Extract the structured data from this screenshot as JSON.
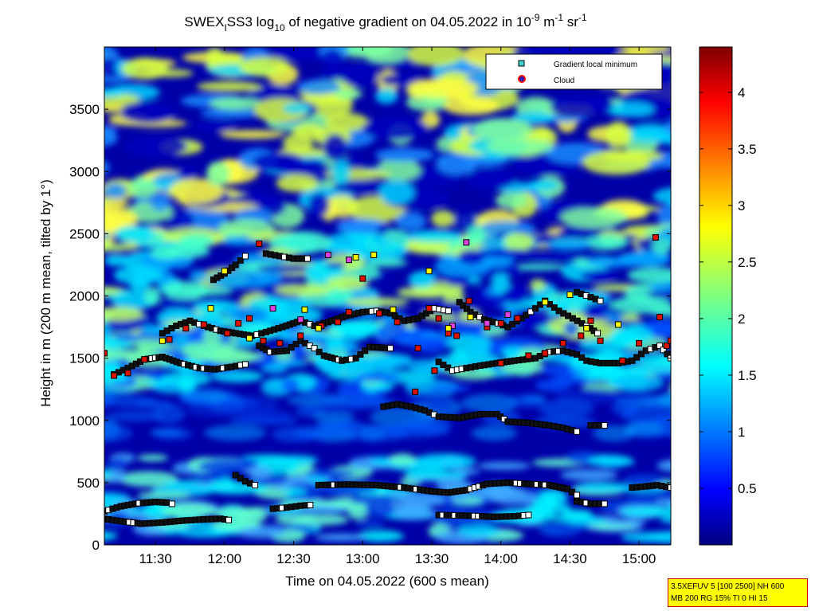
{
  "chart_data": {
    "type": "heatmap",
    "title": {
      "prefix": "SWEX",
      "prefix_sub": "I",
      "main": "SS3 log",
      "log_base": "10",
      "rest": " of negative gradient on 04.05.2022 in 10",
      "exp1": "-9",
      "unit_mid": " m",
      "exp2": "-1",
      "unit_end": " sr",
      "exp3": "-1"
    },
    "xlabel": "Time on 04.05.2022 (600 s mean)",
    "ylabel": "Height in m (200 m mean, tilted by 1°)",
    "x_ticks": [
      "11:30",
      "12:00",
      "12:30",
      "13:00",
      "13:30",
      "14:00",
      "14:30",
      "15:00"
    ],
    "x_range_hours": [
      11.13,
      15.23
    ],
    "y_ticks": [
      0,
      500,
      1000,
      1500,
      2000,
      2500,
      3000,
      3500
    ],
    "y_range": [
      0,
      4000
    ],
    "colorbar": {
      "ticks": [
        "0.5",
        "1",
        "1.5",
        "2",
        "2.5",
        "3",
        "3.5",
        "4"
      ],
      "range": [
        0,
        4.4
      ],
      "colormap": "jet"
    },
    "legend": {
      "placement": "top-right",
      "entries": [
        {
          "label": "Gradient local minimum",
          "marker": "square",
          "color": "#3fd0d0"
        },
        {
          "label": "Cloud",
          "marker": "circle",
          "color": "#2020c0",
          "edge": "#ff0000"
        }
      ]
    },
    "gradient_minimum_tracks": [
      {
        "points": [
          [
            11.13,
            270
          ],
          [
            11.25,
            310
          ],
          [
            11.38,
            335
          ],
          [
            11.5,
            345
          ],
          [
            11.58,
            340
          ],
          [
            11.62,
            330
          ]
        ]
      },
      {
        "points": [
          [
            11.13,
            210
          ],
          [
            11.25,
            190
          ],
          [
            11.4,
            170
          ],
          [
            11.55,
            180
          ],
          [
            11.7,
            195
          ],
          [
            11.85,
            205
          ],
          [
            11.97,
            210
          ],
          [
            12.03,
            200
          ]
        ]
      },
      {
        "points": [
          [
            12.08,
            560
          ],
          [
            12.15,
            510
          ],
          [
            12.22,
            480
          ]
        ]
      },
      {
        "points": [
          [
            12.35,
            290
          ],
          [
            12.45,
            300
          ],
          [
            12.55,
            315
          ],
          [
            12.62,
            320
          ]
        ]
      },
      {
        "points": [
          [
            12.68,
            480
          ],
          [
            12.9,
            485
          ],
          [
            13.1,
            480
          ],
          [
            13.3,
            460
          ],
          [
            13.5,
            430
          ],
          [
            13.62,
            420
          ],
          [
            13.75,
            440
          ],
          [
            13.9,
            490
          ],
          [
            14.05,
            500
          ],
          [
            14.2,
            490
          ],
          [
            14.35,
            480
          ],
          [
            14.48,
            450
          ],
          [
            14.55,
            400
          ]
        ]
      },
      {
        "points": [
          [
            13.55,
            240
          ],
          [
            13.75,
            235
          ],
          [
            13.95,
            225
          ],
          [
            14.1,
            230
          ],
          [
            14.2,
            240
          ]
        ]
      },
      {
        "points": [
          [
            14.55,
            350
          ],
          [
            14.65,
            330
          ],
          [
            14.75,
            330
          ]
        ]
      },
      {
        "points": [
          [
            14.95,
            460
          ],
          [
            15.05,
            470
          ],
          [
            15.13,
            480
          ],
          [
            15.23,
            460
          ]
        ]
      },
      {
        "points": [
          [
            13.15,
            1110
          ],
          [
            13.25,
            1130
          ],
          [
            13.35,
            1110
          ],
          [
            13.45,
            1080
          ],
          [
            13.55,
            1030
          ],
          [
            13.7,
            1020
          ],
          [
            13.85,
            1050
          ],
          [
            13.97,
            1050
          ],
          [
            14.05,
            990
          ],
          [
            14.2,
            980
          ],
          [
            14.35,
            960
          ],
          [
            14.45,
            940
          ],
          [
            14.55,
            910
          ]
        ]
      },
      {
        "points": [
          [
            14.65,
            960
          ],
          [
            14.75,
            960
          ]
        ]
      },
      {
        "points": [
          [
            11.2,
            1370
          ],
          [
            11.3,
            1420
          ],
          [
            11.42,
            1490
          ],
          [
            11.55,
            1510
          ],
          [
            11.68,
            1460
          ],
          [
            11.82,
            1420
          ],
          [
            11.93,
            1410
          ],
          [
            12.05,
            1430
          ],
          [
            12.15,
            1450
          ]
        ]
      },
      {
        "points": [
          [
            12.25,
            1600
          ],
          [
            12.33,
            1550
          ],
          [
            12.45,
            1560
          ],
          [
            12.55,
            1640
          ],
          [
            12.65,
            1580
          ],
          [
            12.72,
            1520
          ],
          [
            12.85,
            1480
          ],
          [
            12.95,
            1500
          ],
          [
            13.05,
            1590
          ],
          [
            13.2,
            1580
          ]
        ]
      },
      {
        "points": [
          [
            13.55,
            1470
          ],
          [
            13.65,
            1400
          ],
          [
            13.75,
            1420
          ],
          [
            13.85,
            1440
          ],
          [
            13.97,
            1460
          ],
          [
            14.1,
            1480
          ],
          [
            14.25,
            1500
          ],
          [
            14.35,
            1550
          ],
          [
            14.45,
            1560
          ],
          [
            14.55,
            1530
          ],
          [
            14.62,
            1480
          ],
          [
            14.72,
            1460
          ],
          [
            14.85,
            1460
          ],
          [
            14.95,
            1480
          ],
          [
            15.05,
            1560
          ],
          [
            15.15,
            1600
          ],
          [
            15.23,
            1500
          ]
        ]
      },
      {
        "points": [
          [
            11.55,
            1700
          ],
          [
            11.65,
            1760
          ],
          [
            11.75,
            1800
          ],
          [
            11.85,
            1760
          ],
          [
            11.97,
            1720
          ],
          [
            12.08,
            1700
          ],
          [
            12.2,
            1680
          ],
          [
            12.3,
            1710
          ],
          [
            12.42,
            1750
          ],
          [
            12.55,
            1800
          ],
          [
            12.65,
            1760
          ],
          [
            12.75,
            1790
          ],
          [
            12.88,
            1840
          ],
          [
            13.0,
            1870
          ],
          [
            13.1,
            1880
          ],
          [
            13.2,
            1860
          ],
          [
            13.3,
            1800
          ],
          [
            13.4,
            1820
          ],
          [
            13.52,
            1900
          ],
          [
            13.62,
            1880
          ]
        ]
      },
      {
        "points": [
          [
            13.7,
            1950
          ],
          [
            13.78,
            1870
          ],
          [
            13.88,
            1810
          ],
          [
            13.98,
            1780
          ],
          [
            14.05,
            1750
          ],
          [
            14.15,
            1820
          ],
          [
            14.25,
            1900
          ],
          [
            14.32,
            1960
          ],
          [
            14.42,
            1880
          ],
          [
            14.52,
            1820
          ],
          [
            14.62,
            1760
          ],
          [
            14.7,
            1700
          ]
        ]
      },
      {
        "points": [
          [
            12.3,
            2340
          ],
          [
            12.4,
            2320
          ],
          [
            12.5,
            2300
          ],
          [
            12.6,
            2300
          ]
        ]
      },
      {
        "points": [
          [
            11.92,
            2130
          ],
          [
            12.0,
            2180
          ],
          [
            12.08,
            2250
          ],
          [
            12.15,
            2320
          ]
        ]
      },
      {
        "points": [
          [
            14.55,
            2030
          ],
          [
            14.65,
            1990
          ],
          [
            14.72,
            1960
          ]
        ]
      }
    ],
    "cloud_points": [
      [
        11.13,
        1540
      ],
      [
        11.2,
        1360
      ],
      [
        11.3,
        1380
      ],
      [
        11.42,
        1490
      ],
      [
        11.6,
        1650
      ],
      [
        11.72,
        1740
      ],
      [
        11.85,
        1770
      ],
      [
        12.02,
        1700
      ],
      [
        12.1,
        1780
      ],
      [
        12.18,
        1820
      ],
      [
        12.25,
        2420
      ],
      [
        12.28,
        1640
      ],
      [
        12.4,
        1620
      ],
      [
        12.55,
        1680
      ],
      [
        12.7,
        1760
      ],
      [
        12.82,
        1790
      ],
      [
        12.9,
        1870
      ],
      [
        13.0,
        2140
      ],
      [
        13.12,
        1860
      ],
      [
        13.25,
        1790
      ],
      [
        13.4,
        1580
      ],
      [
        13.48,
        1900
      ],
      [
        13.55,
        1820
      ],
      [
        13.62,
        1700
      ],
      [
        13.68,
        1680
      ],
      [
        13.77,
        1960
      ],
      [
        13.9,
        1750
      ],
      [
        14.0,
        1780
      ],
      [
        14.12,
        1820
      ],
      [
        14.2,
        1520
      ],
      [
        14.32,
        1540
      ],
      [
        14.45,
        1620
      ],
      [
        14.58,
        1680
      ],
      [
        14.65,
        1800
      ],
      [
        14.72,
        1640
      ],
      [
        14.88,
        1480
      ],
      [
        15.0,
        1620
      ],
      [
        15.12,
        2470
      ],
      [
        15.15,
        1830
      ],
      [
        15.2,
        1600
      ],
      [
        15.23,
        1640
      ],
      [
        13.38,
        1230
      ],
      [
        13.52,
        1400
      ],
      [
        14.0,
        1460
      ]
    ],
    "magenta_points": [
      [
        12.35,
        1900
      ],
      [
        12.55,
        1810
      ],
      [
        12.75,
        2330
      ],
      [
        12.9,
        2290
      ],
      [
        13.75,
        2430
      ],
      [
        13.9,
        1780
      ],
      [
        14.05,
        1850
      ],
      [
        13.65,
        1760
      ]
    ],
    "yellow_points": [
      [
        11.55,
        1640
      ],
      [
        11.9,
        1900
      ],
      [
        12.0,
        2200
      ],
      [
        12.18,
        1660
      ],
      [
        12.58,
        1890
      ],
      [
        12.68,
        1740
      ],
      [
        12.95,
        2310
      ],
      [
        13.08,
        2330
      ],
      [
        13.22,
        1890
      ],
      [
        13.48,
        2200
      ],
      [
        13.62,
        1740
      ],
      [
        13.78,
        1830
      ],
      [
        14.32,
        1950
      ],
      [
        14.5,
        2010
      ],
      [
        14.62,
        1740
      ],
      [
        14.85,
        1770
      ]
    ]
  },
  "info_box": {
    "line1": "3.5XEFUV 5 [100 2500] NH 600",
    "line2": "MB 200 RG 15% TI 0 HI 15"
  }
}
